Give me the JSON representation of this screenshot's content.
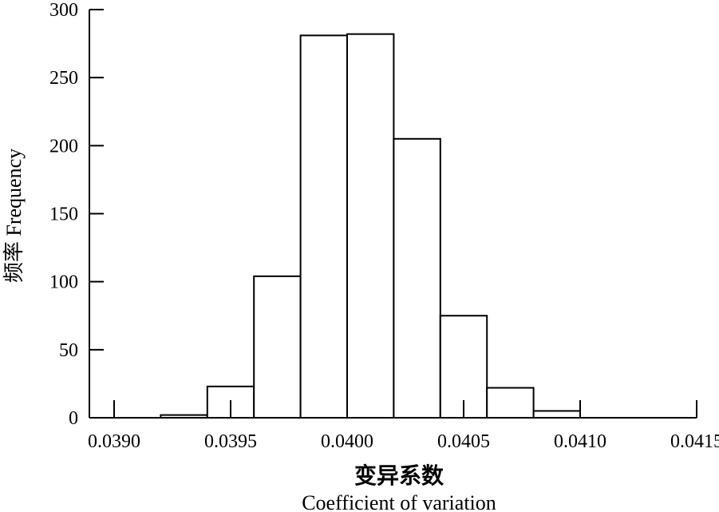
{
  "chart_data": {
    "type": "bar",
    "bin_edges": [
      0.039,
      0.0392,
      0.0394,
      0.0396,
      0.0398,
      0.04,
      0.0402,
      0.0404,
      0.0406,
      0.0408,
      0.041,
      0.0412,
      0.0414
    ],
    "values": [
      0,
      2,
      23,
      104,
      281,
      282,
      205,
      75,
      22,
      5,
      0,
      0
    ],
    "xlabel": "变异系数",
    "xlabel_en": "Coefficient of variation",
    "ylabel": "频率 Frequency",
    "xlim": [
      0.039,
      0.0415
    ],
    "ylim": [
      0,
      300
    ],
    "x_ticks": [
      "0.0390",
      "0.0395",
      "0.0400",
      "0.0405",
      "0.0410",
      "0.0415"
    ],
    "y_ticks": [
      "0",
      "50",
      "100",
      "150",
      "200",
      "250",
      "300"
    ],
    "grid": false,
    "legend": "none"
  }
}
